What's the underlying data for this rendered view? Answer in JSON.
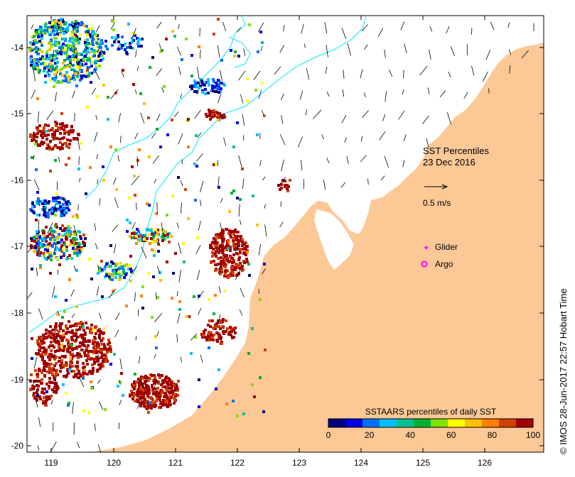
{
  "map": {
    "title": "SST Percentiles",
    "date": "23 Dec 2016",
    "vector_scale_label": "0.5 m/s",
    "legend_glider": "Glider",
    "legend_argo": "Argo",
    "credit": "© IMOS 28-Jun-2017 22:57 Hobart Time",
    "land_color": "#fcc896",
    "lon_ticks": [
      "119",
      "120",
      "121",
      "122",
      "123",
      "124",
      "125",
      "126"
    ],
    "lat_ticks": [
      "-14",
      "-15",
      "-16",
      "-17",
      "-18",
      "-19",
      "-20"
    ],
    "colorbar": {
      "title": "SSTAARS percentiles of daily SST",
      "tick_labels": [
        "0",
        "20",
        "40",
        "60",
        "80",
        "100"
      ],
      "colors": [
        "#00007f",
        "#0000e0",
        "#0070ff",
        "#00c0ff",
        "#00c090",
        "#00b030",
        "#80e000",
        "#ffff00",
        "#ffc000",
        "#ff8000",
        "#d04000",
        "#a00000"
      ]
    },
    "marker_colors": {
      "glider": "#ff00ff",
      "argo": "#ff00ff",
      "contour": "#00e5ff"
    }
  }
}
